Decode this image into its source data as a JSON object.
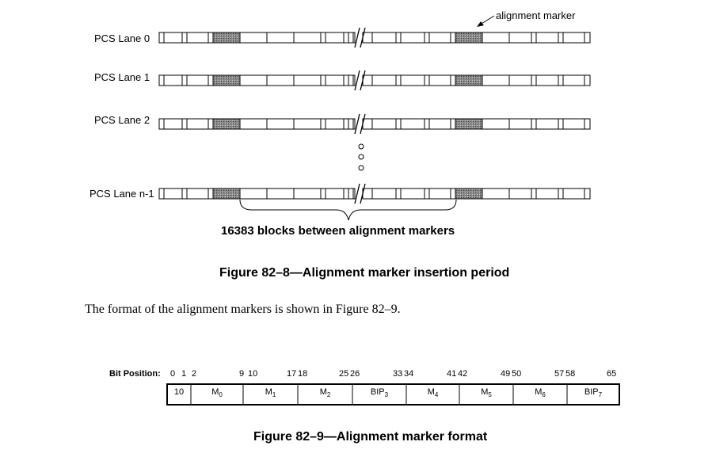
{
  "figure8": {
    "lanes": [
      {
        "label": "PCS Lane 0"
      },
      {
        "label": "PCS Lane 1"
      },
      {
        "label": "PCS Lane 2"
      },
      {
        "label": "PCS Lane n-1"
      }
    ],
    "alignment_marker_label": "alignment marker",
    "blocks_note": "16383 blocks between alignment markers",
    "caption": "Figure 82–8—Alignment marker insertion period"
  },
  "body_text": "The format of the alignment markers is shown in Figure 82–9.",
  "figure9": {
    "bit_position_label": "Bit Position:",
    "bit_numbers": [
      "0",
      "1",
      "2",
      "9",
      "10",
      "17",
      "18",
      "25",
      "26",
      "33",
      "34",
      "41",
      "42",
      "49",
      "50",
      "57",
      "58",
      "65"
    ],
    "fields": [
      {
        "name": "10",
        "sub": ""
      },
      {
        "name": "M",
        "sub": "0"
      },
      {
        "name": "M",
        "sub": "1"
      },
      {
        "name": "M",
        "sub": "2"
      },
      {
        "name": "BIP",
        "sub": "3"
      },
      {
        "name": "M",
        "sub": "4"
      },
      {
        "name": "M",
        "sub": "5"
      },
      {
        "name": "M",
        "sub": "6"
      },
      {
        "name": "BIP",
        "sub": "7"
      }
    ],
    "caption": "Figure 82–9—Alignment marker format"
  }
}
